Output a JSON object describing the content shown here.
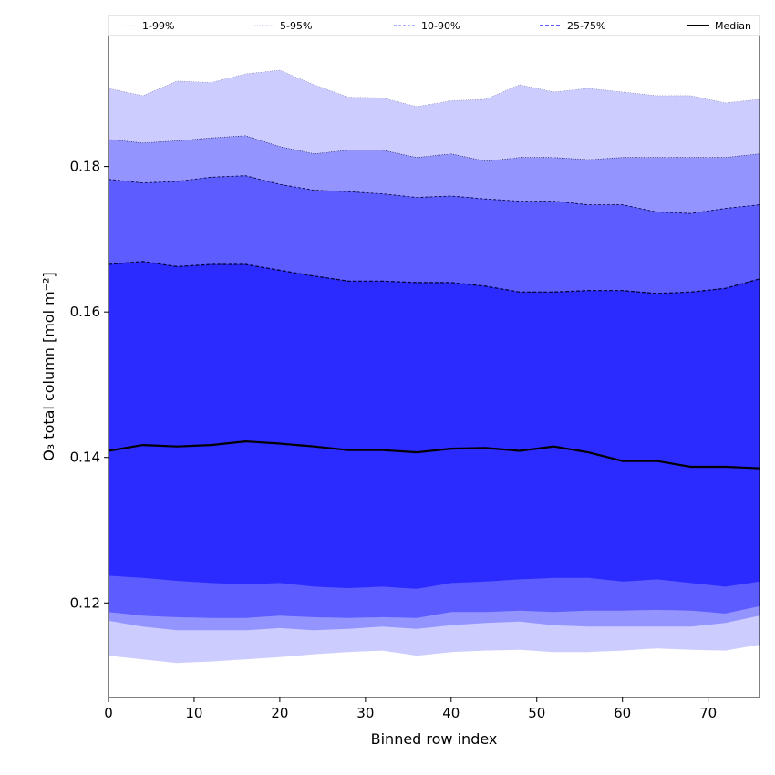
{
  "chart_data": {
    "type": "area",
    "xlabel": "Binned row index",
    "ylabel": "O₃ total column [mol m⁻²]",
    "xlim": [
      0,
      76
    ],
    "ylim": [
      0.107,
      0.198
    ],
    "x_ticks": [
      0,
      10,
      20,
      30,
      40,
      50,
      60,
      70
    ],
    "y_ticks": [
      0.12,
      0.14,
      0.16,
      0.18
    ],
    "x_tick_labels": [
      "0",
      "10",
      "20",
      "30",
      "40",
      "50",
      "60",
      "70"
    ],
    "y_tick_labels": [
      "0.12",
      "0.14",
      "0.16",
      "0.18"
    ],
    "grid": false,
    "legend_position": "top",
    "legend": [
      {
        "label": "1-99%",
        "color": "#ccccff",
        "style": "dotted-thin"
      },
      {
        "label": "5-95%",
        "color": "#9494ff",
        "style": "dotted"
      },
      {
        "label": "10-90%",
        "color": "#5c5cff",
        "style": "dashed-thin"
      },
      {
        "label": "25-75%",
        "color": "#2b2bff",
        "style": "dashed"
      },
      {
        "label": "Median",
        "color": "#000000",
        "style": "solid"
      }
    ],
    "x_points": [
      0,
      4,
      8,
      12,
      16,
      20,
      24,
      28,
      32,
      36,
      40,
      44,
      48,
      52,
      56,
      60,
      64,
      68,
      72,
      76
    ],
    "bands": [
      {
        "name": "1-99%",
        "color": "#ccccff",
        "lower": [
          0.113,
          0.1125,
          0.112,
          0.1122,
          0.1125,
          0.1128,
          0.1132,
          0.1135,
          0.1137,
          0.113,
          0.1135,
          0.1137,
          0.1138,
          0.1135,
          0.1135,
          0.1137,
          0.114,
          0.1138,
          0.1137,
          0.1145
        ],
        "upper": [
          0.191,
          0.19,
          0.192,
          0.1918,
          0.193,
          0.1935,
          0.1915,
          0.1898,
          0.1897,
          0.1885,
          0.1893,
          0.1895,
          0.1915,
          0.1905,
          0.191,
          0.1905,
          0.19,
          0.19,
          0.189,
          0.1895
        ]
      },
      {
        "name": "5-95%",
        "color": "#9494ff",
        "lower": [
          0.1178,
          0.117,
          0.1165,
          0.1165,
          0.1165,
          0.1168,
          0.1165,
          0.1167,
          0.117,
          0.1167,
          0.1172,
          0.1175,
          0.1177,
          0.1172,
          0.117,
          0.117,
          0.117,
          0.117,
          0.1175,
          0.1185
        ],
        "upper": [
          0.184,
          0.1835,
          0.1838,
          0.1842,
          0.1845,
          0.183,
          0.182,
          0.1825,
          0.1825,
          0.1815,
          0.182,
          0.181,
          0.1815,
          0.1815,
          0.1812,
          0.1815,
          0.1815,
          0.1815,
          0.1815,
          0.182
        ]
      },
      {
        "name": "10-90%",
        "color": "#5c5cff",
        "lower": [
          0.119,
          0.1185,
          0.1183,
          0.1182,
          0.1182,
          0.1185,
          0.1183,
          0.1182,
          0.1183,
          0.1182,
          0.119,
          0.119,
          0.1192,
          0.119,
          0.1192,
          0.1192,
          0.1193,
          0.1192,
          0.1188,
          0.1198
        ],
        "upper": [
          0.1785,
          0.178,
          0.1782,
          0.1788,
          0.179,
          0.1778,
          0.177,
          0.1768,
          0.1765,
          0.176,
          0.1762,
          0.1758,
          0.1755,
          0.1755,
          0.175,
          0.175,
          0.174,
          0.1738,
          0.1745,
          0.175
        ]
      },
      {
        "name": "25-75%",
        "color": "#2b2bff",
        "lower": [
          0.124,
          0.1237,
          0.1233,
          0.123,
          0.1228,
          0.123,
          0.1225,
          0.1223,
          0.1225,
          0.1222,
          0.123,
          0.1232,
          0.1235,
          0.1237,
          0.1237,
          0.1232,
          0.1235,
          0.123,
          0.1225,
          0.1232
        ],
        "upper": [
          0.1668,
          0.1672,
          0.1665,
          0.1668,
          0.1668,
          0.166,
          0.1652,
          0.1645,
          0.1645,
          0.1643,
          0.1643,
          0.1638,
          0.163,
          0.163,
          0.1632,
          0.1632,
          0.1628,
          0.163,
          0.1635,
          0.1648
        ]
      }
    ],
    "median": {
      "name": "Median",
      "color": "#000000",
      "values": [
        0.1412,
        0.142,
        0.1418,
        0.142,
        0.1425,
        0.1422,
        0.1418,
        0.1413,
        0.1413,
        0.141,
        0.1415,
        0.1416,
        0.1412,
        0.1418,
        0.141,
        0.1398,
        0.1398,
        0.139,
        0.139,
        0.1388
      ]
    }
  }
}
